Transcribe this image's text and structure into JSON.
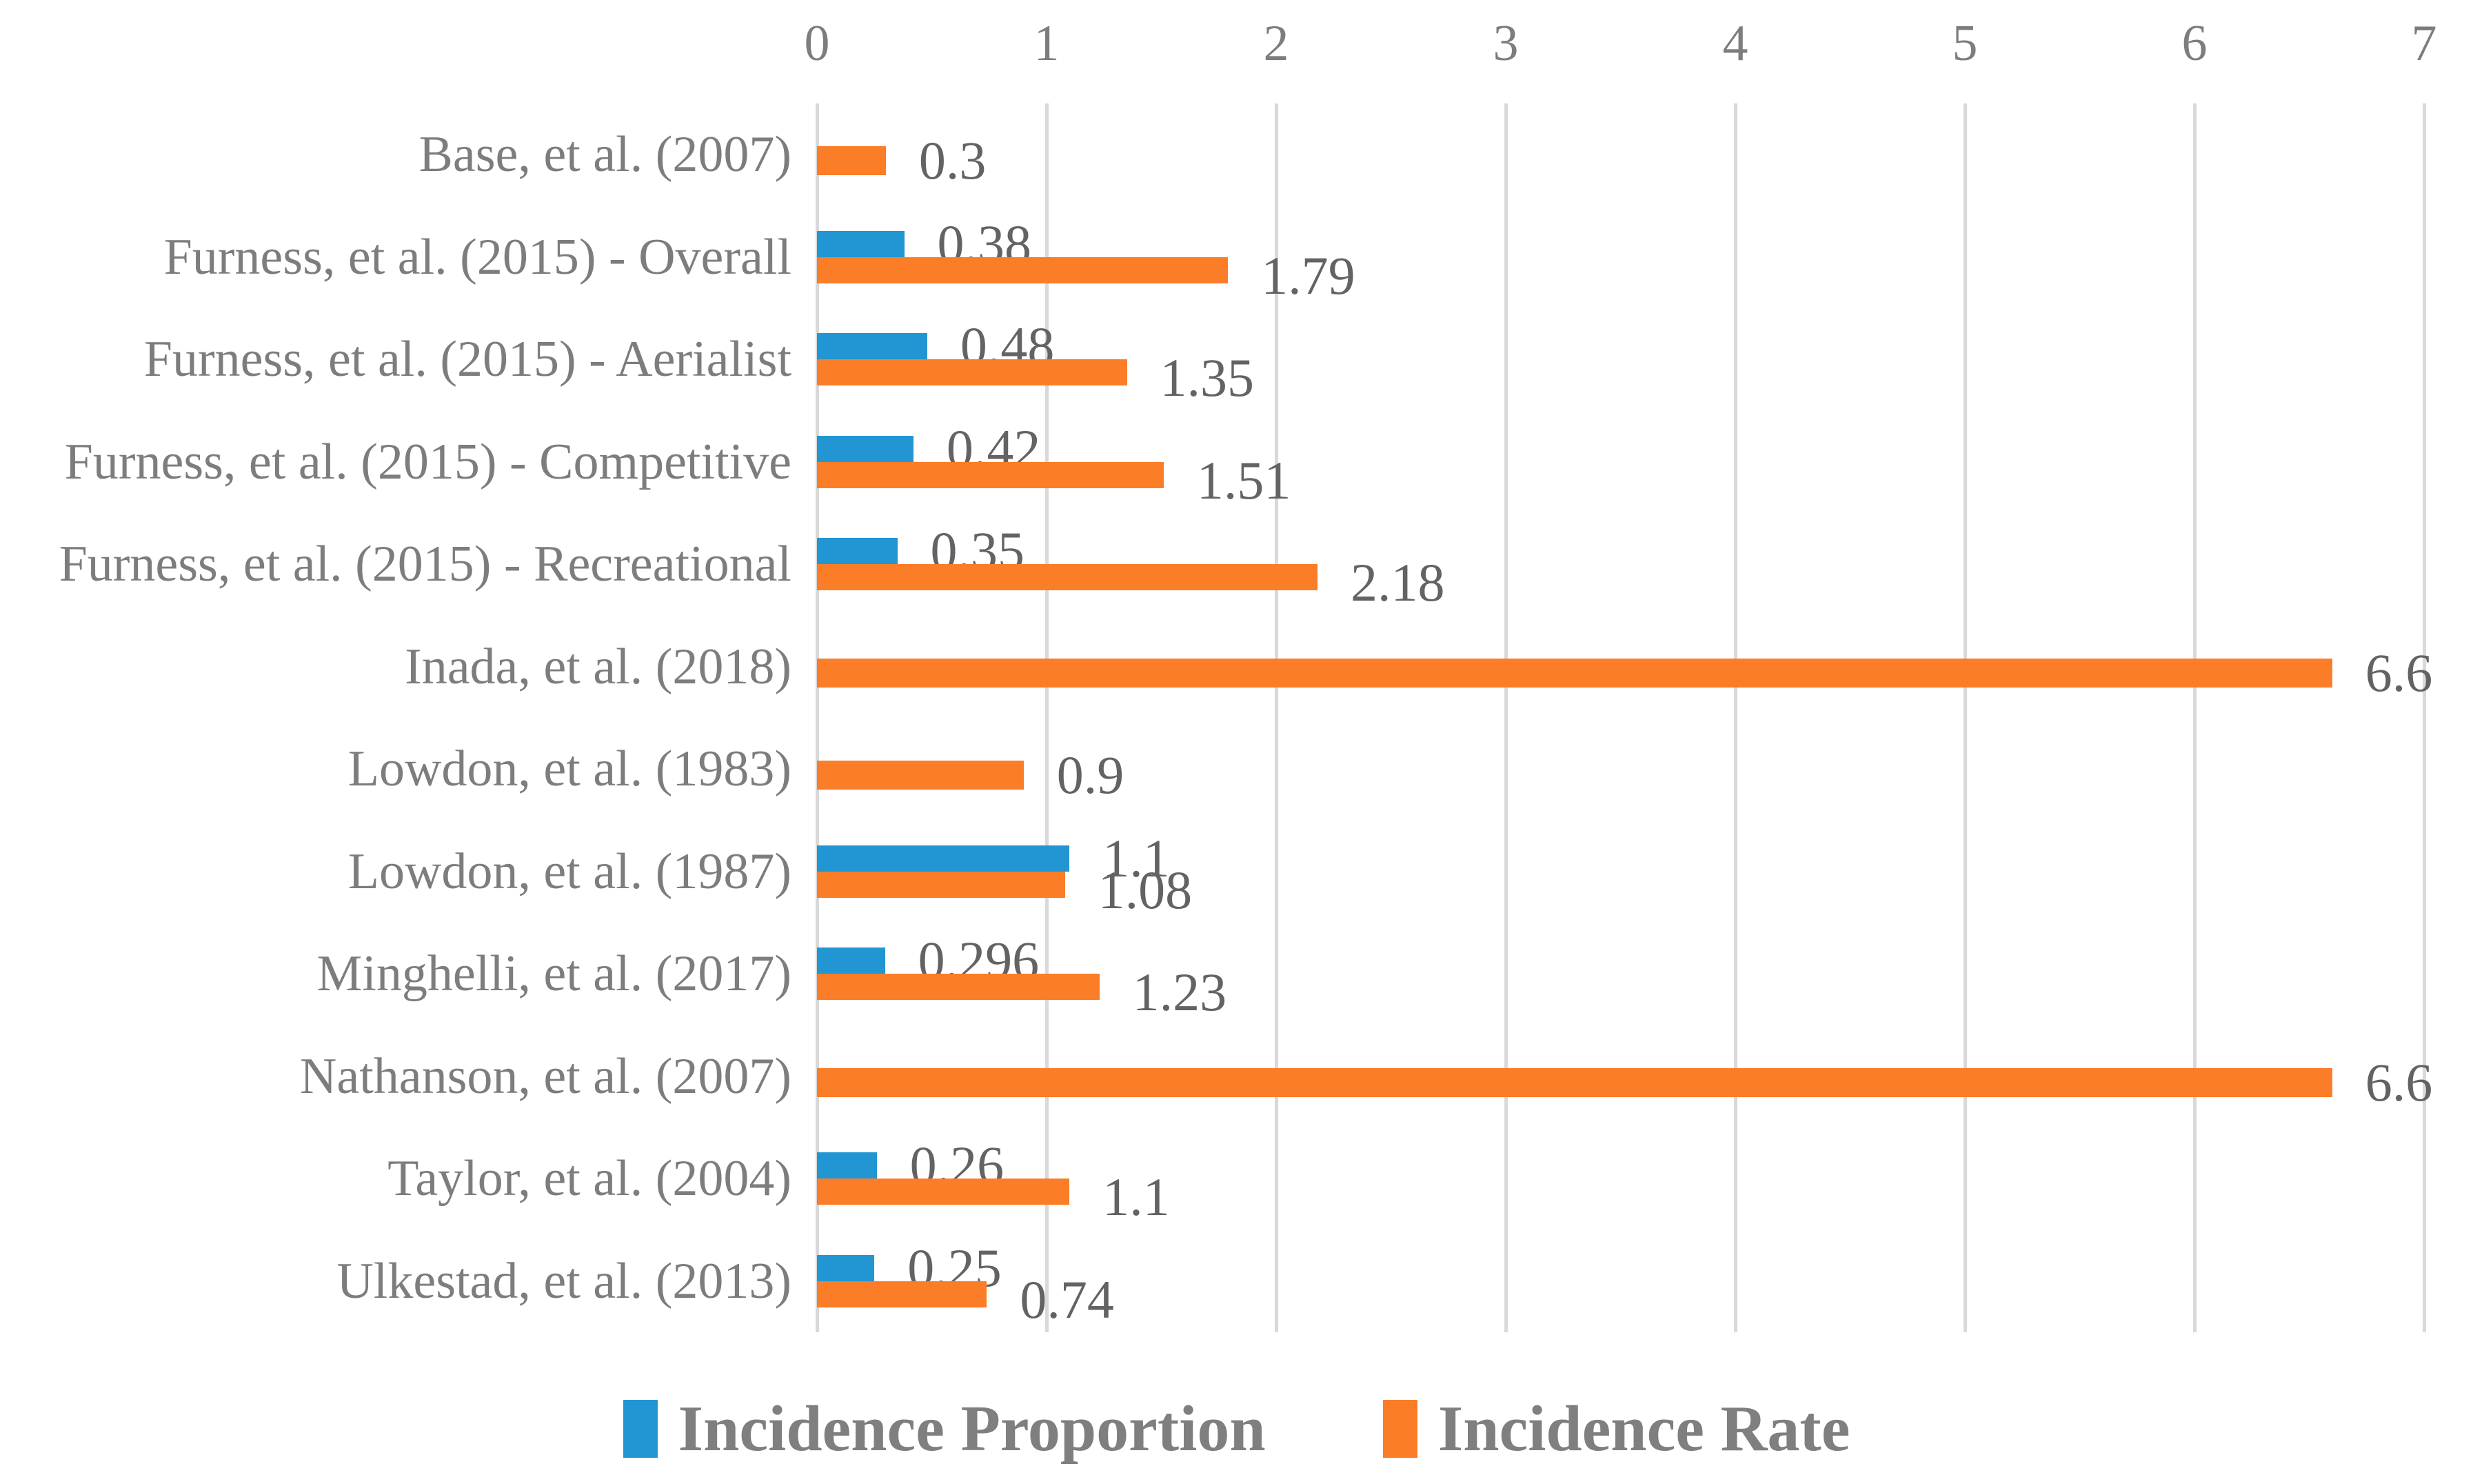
{
  "chart_data": {
    "type": "bar",
    "orientation": "horizontal",
    "title": "",
    "categories": [
      "Base, et al. (2007)",
      "Furness, et al. (2015) - Overall",
      "Furness, et al. (2015) - Aerialist",
      "Furness, et al. (2015) - Competitive",
      "Furness, et al. (2015) - Recreational",
      "Inada, et al. (2018)",
      "Lowdon, et al. (1983)",
      "Lowdon, et al. (1987)",
      "Minghelli, et al. (2017)",
      "Nathanson, et al. (2007)",
      "Taylor, et al. (2004)",
      "Ulkestad, et al. (2013)"
    ],
    "series": [
      {
        "name": "Incidence Proportion",
        "color": "#2196D3",
        "values": [
          null,
          0.38,
          0.48,
          0.42,
          0.35,
          null,
          null,
          1.1,
          0.296,
          null,
          0.26,
          0.25
        ],
        "labels": [
          null,
          "0.38",
          "0.48",
          "0.42",
          "0.35",
          null,
          null,
          "1.1",
          "0.296",
          null,
          "0.26",
          "0.25"
        ]
      },
      {
        "name": "Incidence Rate",
        "color": "#FB7D28",
        "values": [
          0.3,
          1.79,
          1.35,
          1.51,
          2.18,
          6.6,
          0.9,
          1.08,
          1.23,
          6.6,
          1.1,
          0.74
        ],
        "labels": [
          "0.3",
          "1.79",
          "1.35",
          "1.51",
          "2.18",
          "6.6",
          "0.9",
          "1.08",
          "1.23",
          "6.6",
          "1.1",
          "0.74"
        ]
      }
    ],
    "x_axis": {
      "ticks": [
        "0",
        "1",
        "2",
        "3",
        "4",
        "5",
        "6",
        "7"
      ],
      "min": 0,
      "max": 7,
      "position": "top"
    },
    "grid": true,
    "legend_position": "bottom"
  },
  "legend": {
    "proportion_label": "Incidence Proportion",
    "rate_label": "Incidence Rate"
  },
  "colors": {
    "proportion": "#2196D3",
    "rate": "#FB7D28",
    "gridline": "#D9D9D9",
    "category_text": "#7D7D7D",
    "value_text": "#636363",
    "legend_text": "#7F7F7F"
  }
}
